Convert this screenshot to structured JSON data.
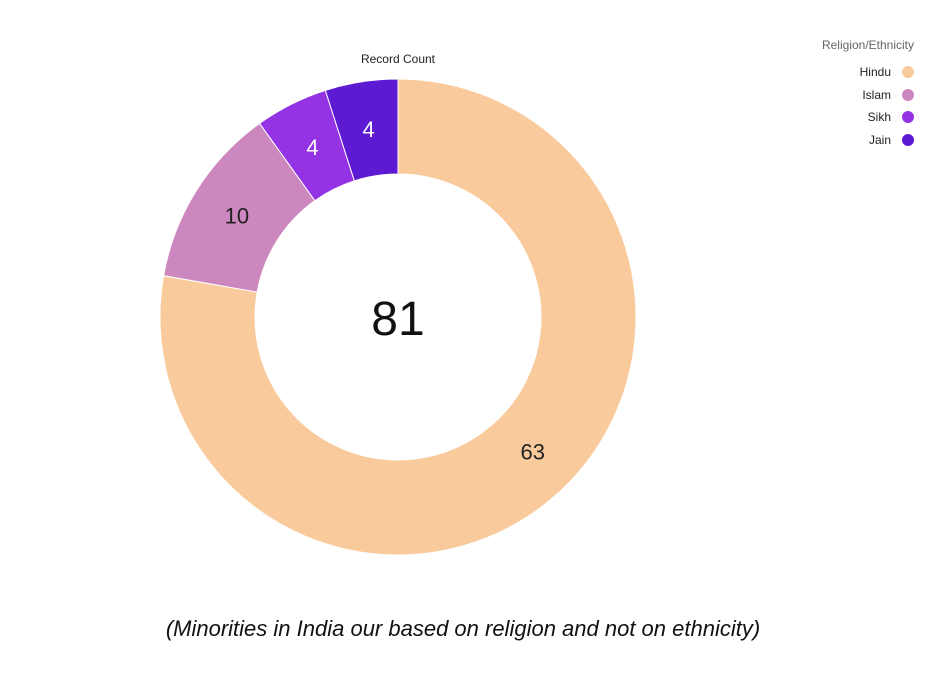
{
  "chart_data": {
    "type": "pie",
    "donut": true,
    "title": "Record Count",
    "center_label": "81",
    "legend_title": "Religion/Ethnicity",
    "legend_position": "top-right",
    "slices": [
      {
        "label": "Hindu",
        "value": 63,
        "color": "#F9CA9C"
      },
      {
        "label": "Islam",
        "value": 10,
        "color": "#CD87BF"
      },
      {
        "label": "Sikh",
        "value": 4,
        "color": "#9333E4"
      },
      {
        "label": "Jain",
        "value": 4,
        "color": "#5E19D3"
      }
    ]
  },
  "caption": "(Minorities in India our based on religion and not on ethnicity)"
}
